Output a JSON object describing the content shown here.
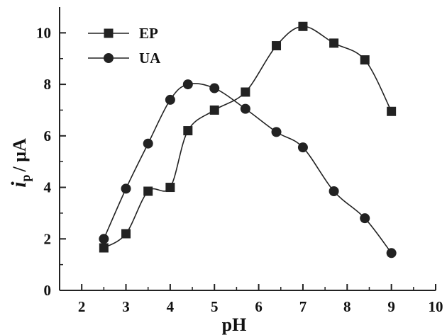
{
  "chart_data": {
    "type": "line",
    "xlabel": "pH",
    "ylabel": {
      "italic": "i",
      "subscript": "p",
      "unit": "/ μA"
    },
    "xlim": [
      1.5,
      10
    ],
    "ylim": [
      0,
      11
    ],
    "xticks": [
      "2",
      "3",
      "4",
      "5",
      "6",
      "7",
      "8",
      "9",
      "10"
    ],
    "yticks": [
      "0",
      "2",
      "4",
      "6",
      "8",
      "10"
    ],
    "grid": false,
    "legend_position": "top-left",
    "line_color": "#222222",
    "series": [
      {
        "name": "EP",
        "marker": "square",
        "x": [
          2.5,
          3.0,
          3.5,
          4.0,
          4.4,
          5.0,
          5.7,
          6.4,
          7.0,
          7.7,
          8.4,
          9.0
        ],
        "y": [
          1.65,
          2.2,
          3.85,
          4.0,
          6.2,
          7.0,
          7.7,
          9.5,
          10.25,
          9.6,
          8.95,
          6.95
        ]
      },
      {
        "name": "UA",
        "marker": "circle",
        "x": [
          2.5,
          3.0,
          3.5,
          4.0,
          4.4,
          5.0,
          5.7,
          6.4,
          7.0,
          7.7,
          8.4,
          9.0
        ],
        "y": [
          2.0,
          3.95,
          5.7,
          7.4,
          8.0,
          7.85,
          7.05,
          6.15,
          5.55,
          3.85,
          2.8,
          1.45
        ]
      }
    ]
  }
}
